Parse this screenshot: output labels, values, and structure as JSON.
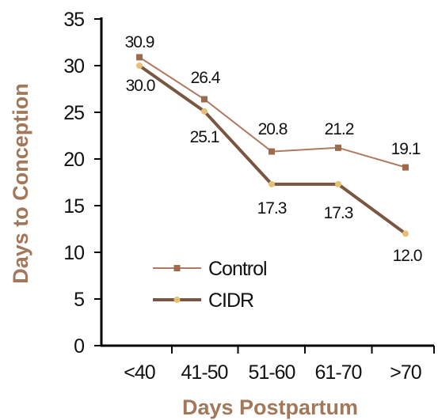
{
  "chart_data": {
    "type": "line",
    "title": "",
    "xlabel": "Days Postpartum",
    "ylabel": "Days to Conception",
    "categories": [
      "<40",
      "41-50",
      "51-60",
      "61-70",
      ">70"
    ],
    "ylim": [
      0,
      35
    ],
    "yticks": [
      0,
      5,
      10,
      15,
      20,
      25,
      30,
      35
    ],
    "grid": false,
    "legend_position": "lower-left",
    "series": [
      {
        "name": "Control",
        "values": [
          30.9,
          26.4,
          20.8,
          21.2,
          19.1
        ],
        "labels": [
          "30.9",
          "26.4",
          "20.8",
          "21.2",
          "19.1"
        ],
        "line_color": "#b07a5e",
        "marker_color": "#9e6a4e",
        "marker": "square"
      },
      {
        "name": "CIDR",
        "values": [
          30.0,
          25.1,
          17.3,
          17.3,
          12.0
        ],
        "labels": [
          "30.0",
          "25.1",
          "17.3",
          "17.3",
          "12.0"
        ],
        "line_color": "#7a5640",
        "marker_color": "#e6c077",
        "marker": "circle"
      }
    ]
  },
  "colors": {
    "axis_title": "#a2775a",
    "text": "#111111",
    "axis": "#000000"
  }
}
